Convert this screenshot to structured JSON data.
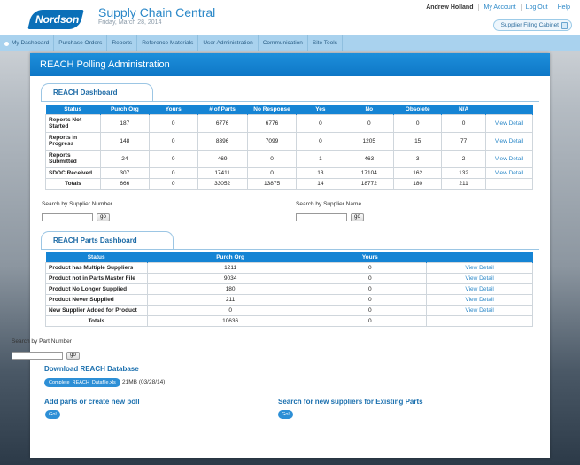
{
  "header": {
    "logo_text": "Nordson",
    "app_title": "Supply Chain Central",
    "app_date": "Friday, March 28, 2014",
    "user_name": "Andrew Holland",
    "links": [
      "My Account",
      "Log Out",
      "Help"
    ],
    "cabinet_label": "Supplier Filing Cabinet"
  },
  "nav": {
    "items": [
      "My Dashboard",
      "Purchase Orders",
      "Reports",
      "Reference Materials",
      "User Administration",
      "Communication",
      "Site Tools"
    ]
  },
  "page": {
    "title": "REACH Polling Administration"
  },
  "dashboard": {
    "tab_label": "REACH Dashboard",
    "columns": [
      "Status",
      "Purch Org",
      "Yours",
      "# of Parts",
      "No Response",
      "Yes",
      "No",
      "Obsolete",
      "N/A",
      ""
    ],
    "rows": [
      {
        "status": "Reports Not Started",
        "purch_org": "187",
        "yours": "0",
        "parts": "6776",
        "no_response": "6776",
        "yes": "0",
        "no": "0",
        "obsolete": "0",
        "na": "0",
        "link": "View Detail"
      },
      {
        "status": "Reports In Progress",
        "purch_org": "148",
        "yours": "0",
        "parts": "8396",
        "no_response": "7099",
        "yes": "0",
        "no": "1205",
        "obsolete": "15",
        "na": "77",
        "link": "View Detail"
      },
      {
        "status": "Reports Submitted",
        "purch_org": "24",
        "yours": "0",
        "parts": "469",
        "no_response": "0",
        "yes": "1",
        "no": "463",
        "obsolete": "3",
        "na": "2",
        "link": "View Detail"
      },
      {
        "status": "SDOC Received",
        "purch_org": "307",
        "yours": "0",
        "parts": "17411",
        "no_response": "0",
        "yes": "13",
        "no": "17104",
        "obsolete": "162",
        "na": "132",
        "link": "View Detail"
      }
    ],
    "totals": {
      "label": "Totals",
      "purch_org": "666",
      "yours": "0",
      "parts": "33052",
      "no_response": "13875",
      "yes": "14",
      "no": "18772",
      "obsolete": "180",
      "na": "211"
    }
  },
  "search": {
    "supplier_number_label": "Search by Supplier Number",
    "supplier_name_label": "Search by Supplier Name",
    "part_number_label": "Search by Part Number",
    "go_label": "go"
  },
  "parts": {
    "tab_label": "REACH Parts Dashboard",
    "columns": [
      "Status",
      "Purch Org",
      "Yours",
      ""
    ],
    "rows": [
      {
        "status": "Product has Multiple Suppliers",
        "purch_org": "1211",
        "yours": "0",
        "link": "View Detail"
      },
      {
        "status": "Product not in Parts Master File",
        "purch_org": "9034",
        "yours": "0",
        "link": "View Detail"
      },
      {
        "status": "Product No Longer Supplied",
        "purch_org": "180",
        "yours": "0",
        "link": "View Detail"
      },
      {
        "status": "Product Never Supplied",
        "purch_org": "211",
        "yours": "0",
        "link": "View Detail"
      },
      {
        "status": "New Supplier Added for Product",
        "purch_org": "0",
        "yours": "0",
        "link": "View Detail"
      }
    ],
    "totals": {
      "label": "Totals",
      "purch_org": "10636",
      "yours": "0"
    }
  },
  "download": {
    "title": "Download REACH Database",
    "file_name": "Complete_REACH_Datafile.xls",
    "file_meta": "21MB (03/28/14)"
  },
  "actions": {
    "add_title": "Add parts or create new poll",
    "search_title": "Search for new suppliers for Existing Parts",
    "go_label": "Go!"
  }
}
